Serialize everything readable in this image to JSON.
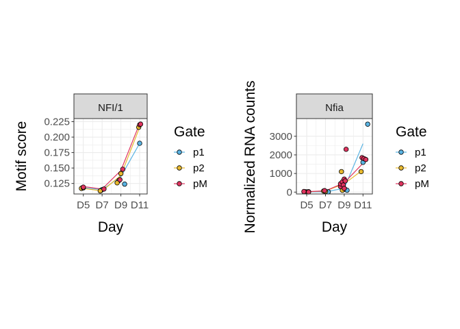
{
  "colors": {
    "p1": "#5ab4e3",
    "p2": "#e8b92f",
    "pM": "#e0345f",
    "strip": "#d9d9d9",
    "grid": "#ebebeb"
  },
  "chart_data": [
    {
      "type": "line+scatter",
      "panel": "left",
      "strip_label": "NFI/1",
      "xlabel": "Day",
      "ylabel": "Motif score",
      "x_ticks": [
        "D5",
        "D7",
        "D9",
        "D11"
      ],
      "x_tick_values": [
        5,
        7,
        9,
        11
      ],
      "xlim": [
        4.0,
        11.8
      ],
      "y_ticks": [
        "0.125",
        "0.150",
        "0.175",
        "0.200",
        "0.225"
      ],
      "y_tick_values": [
        0.125,
        0.15,
        0.175,
        0.2,
        0.225
      ],
      "ylim": [
        0.108,
        0.23
      ],
      "legend": {
        "title": "Gate",
        "placement": "right",
        "entries": [
          "p1",
          "p2",
          "pM"
        ]
      },
      "series": [
        {
          "name": "p1",
          "color": "p1",
          "line": [
            [
              5,
              0.118
            ],
            [
              7,
              0.115
            ],
            [
              9,
              0.136
            ],
            [
              11,
              0.19
            ]
          ],
          "points": [
            [
              4.9,
              0.118
            ],
            [
              5.0,
              0.118
            ],
            [
              6.9,
              0.114
            ],
            [
              7.0,
              0.115
            ],
            [
              8.8,
              0.13
            ],
            [
              9.4,
              0.124
            ],
            [
              11.0,
              0.19
            ]
          ]
        },
        {
          "name": "p2",
          "color": "p2",
          "line": [
            [
              5,
              0.117
            ],
            [
              7,
              0.113
            ],
            [
              9,
              0.138
            ],
            [
              11,
              0.216
            ]
          ],
          "points": [
            [
              4.8,
              0.117
            ],
            [
              5.0,
              0.118
            ],
            [
              6.8,
              0.113
            ],
            [
              8.6,
              0.126
            ],
            [
              9.0,
              0.141
            ],
            [
              10.9,
              0.216
            ]
          ]
        },
        {
          "name": "pM",
          "color": "pM",
          "line": [
            [
              5,
              0.12
            ],
            [
              7,
              0.116
            ],
            [
              9,
              0.146
            ],
            [
              11,
              0.222
            ]
          ],
          "points": [
            [
              5.0,
              0.119
            ],
            [
              7.2,
              0.116
            ],
            [
              8.9,
              0.131
            ],
            [
              9.2,
              0.148
            ],
            [
              11.0,
              0.22
            ],
            [
              11.1,
              0.221
            ]
          ]
        }
      ]
    },
    {
      "type": "line+scatter",
      "panel": "right",
      "strip_label": "Nfia",
      "xlabel": "Day",
      "ylabel": "Normalized RNA counts",
      "x_ticks": [
        "D5",
        "D7",
        "D9",
        "D11"
      ],
      "x_tick_values": [
        5,
        7,
        9,
        11
      ],
      "xlim": [
        3.9,
        12.0
      ],
      "y_ticks": [
        "0",
        "1000",
        "2000",
        "3000"
      ],
      "y_tick_values": [
        0,
        1000,
        2000,
        3000
      ],
      "ylim": [
        -100,
        3950
      ],
      "legend": {
        "title": "Gate",
        "placement": "right",
        "entries": [
          "p1",
          "p2",
          "pM"
        ]
      },
      "series": [
        {
          "name": "p1",
          "color": "p1",
          "line": [
            [
              5,
              10
            ],
            [
              7,
              20
            ],
            [
              9,
              200
            ],
            [
              11,
              2600
            ]
          ],
          "points": [
            [
              5.0,
              10
            ],
            [
              5.2,
              20
            ],
            [
              7.3,
              15
            ],
            [
              9.1,
              150
            ],
            [
              9.3,
              100
            ],
            [
              11.0,
              1600
            ],
            [
              11.5,
              3650
            ]
          ]
        },
        {
          "name": "p2",
          "color": "p2",
          "line": [
            [
              5,
              15
            ],
            [
              7,
              60
            ],
            [
              9,
              450
            ],
            [
              11,
              1200
            ]
          ],
          "points": [
            [
              4.8,
              20
            ],
            [
              6.8,
              60
            ],
            [
              7.0,
              40
            ],
            [
              8.7,
              1100
            ],
            [
              8.8,
              100
            ],
            [
              10.8,
              1100
            ]
          ]
        },
        {
          "name": "pM",
          "color": "pM",
          "line": [
            [
              5,
              20
            ],
            [
              7,
              70
            ],
            [
              9,
              500
            ],
            [
              11,
              1550
            ]
          ],
          "points": [
            [
              4.7,
              30
            ],
            [
              5.2,
              10
            ],
            [
              6.9,
              80
            ],
            [
              8.6,
              300
            ],
            [
              8.6,
              450
            ],
            [
              8.8,
              550
            ],
            [
              8.9,
              380
            ],
            [
              9.0,
              700
            ],
            [
              9.0,
              200
            ],
            [
              9.1,
              600
            ],
            [
              9.2,
              2300
            ],
            [
              10.9,
              1850
            ],
            [
              11.1,
              1800
            ],
            [
              11.3,
              1750
            ]
          ]
        }
      ]
    }
  ]
}
